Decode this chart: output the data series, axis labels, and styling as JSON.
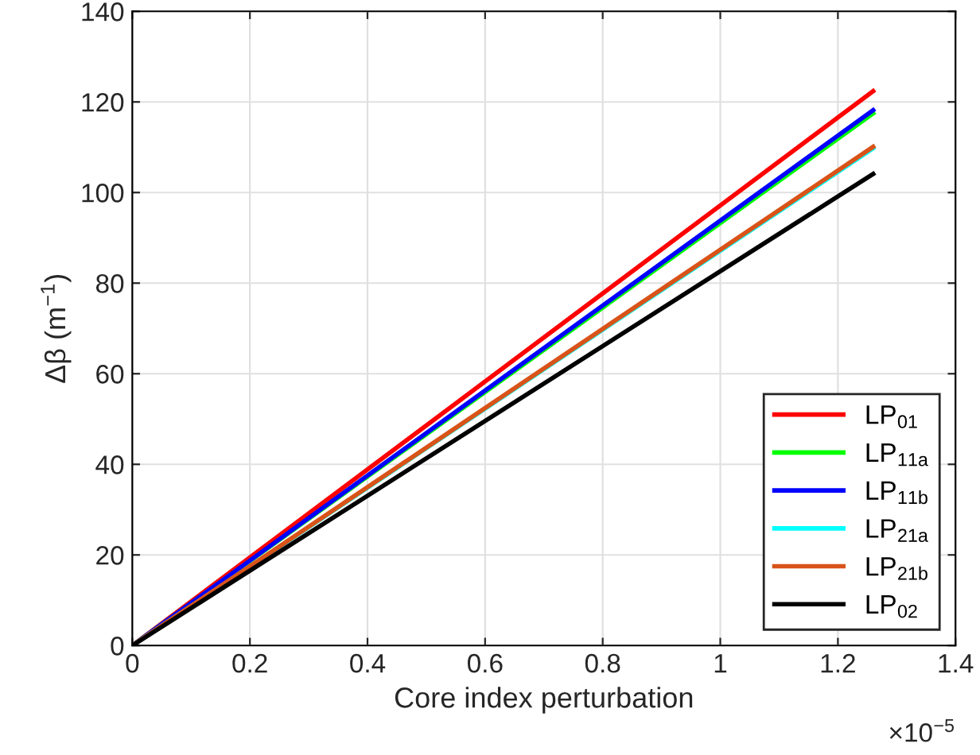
{
  "chart_data": {
    "type": "line",
    "xlabel": "Core index perturbation",
    "ylabel": "Δβ (m$^{−1}$)",
    "x": [
      0,
      1.26
    ],
    "series": [
      {
        "name": "LP$_{01}$",
        "color": "#ff0000",
        "values": [
          0,
          122.4
        ]
      },
      {
        "name": "LP$_{11a}$",
        "color": "#00ff00",
        "values": [
          0,
          117.5
        ]
      },
      {
        "name": "LP$_{11b}$",
        "color": "#0000ff",
        "values": [
          0,
          118.2
        ]
      },
      {
        "name": "LP$_{21a}$",
        "color": "#00ffff",
        "values": [
          0,
          109.8
        ]
      },
      {
        "name": "LP$_{21b}$",
        "color": "#d95319",
        "values": [
          0,
          110.1
        ]
      },
      {
        "name": "LP$_{02}$",
        "color": "#000000",
        "values": [
          0,
          104.1
        ]
      }
    ],
    "xlim": [
      0,
      1.4
    ],
    "xticks": [
      0,
      0.2,
      0.4,
      0.6,
      0.8,
      1,
      1.2,
      1.4
    ],
    "ylim": [
      0,
      140
    ],
    "yticks": [
      0,
      20,
      40,
      60,
      80,
      100,
      120,
      140
    ],
    "annotations": [
      "×10$^{−5}$"
    ],
    "grid": true,
    "legend": "bottom right",
    "marker": "none",
    "line_style": "solid"
  }
}
